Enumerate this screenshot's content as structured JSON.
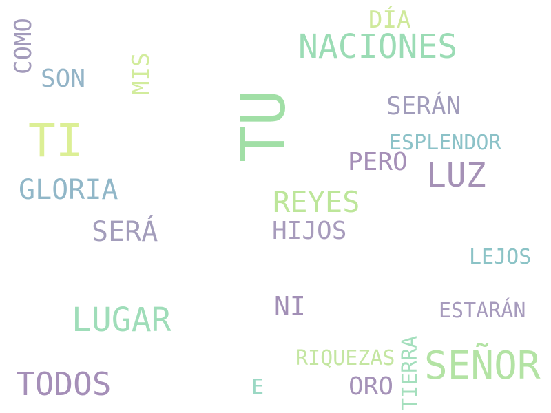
{
  "words": [
    {
      "text": "TU",
      "color": "#a1dfa6"
    },
    {
      "text": "NACIONES",
      "color": "#9bdcb5"
    },
    {
      "text": "TI",
      "color": "#dcef95"
    },
    {
      "text": "SEÑOR",
      "color": "#b3e3a4"
    },
    {
      "text": "LUGAR",
      "color": "#9fddb9"
    },
    {
      "text": "TODOS",
      "color": "#a58fb8"
    },
    {
      "text": "LUZ",
      "color": "#a591b6"
    },
    {
      "text": "REYES",
      "color": "#bde69a"
    },
    {
      "text": "GLORIA",
      "color": "#91b7c8"
    },
    {
      "text": "SERÁ",
      "color": "#a39dbb"
    },
    {
      "text": "SERÁN",
      "color": "#a19cbb"
    },
    {
      "text": "HIJOS",
      "color": "#a79bbc"
    },
    {
      "text": "NI",
      "color": "#a28fb6"
    },
    {
      "text": "PERO",
      "color": "#a58fb7"
    },
    {
      "text": "ORO",
      "color": "#a592b8"
    },
    {
      "text": "SON",
      "color": "#93b4c7"
    },
    {
      "text": "ESPLENDOR",
      "color": "#8cc2c8"
    },
    {
      "text": "ESTARÁN",
      "color": "#a79bbd"
    },
    {
      "text": "RIQUEZAS",
      "color": "#c4e6a1"
    },
    {
      "text": "LEJOS",
      "color": "#8bc3c6"
    },
    {
      "text": "DÍA",
      "color": "#cfe99b"
    },
    {
      "text": "E",
      "color": "#9bd8c4"
    },
    {
      "text": "COMO",
      "color": "#a39bbb"
    },
    {
      "text": "MIS",
      "color": "#d2ec9c"
    },
    {
      "text": "TIERRA",
      "color": "#a4dfbd"
    }
  ]
}
